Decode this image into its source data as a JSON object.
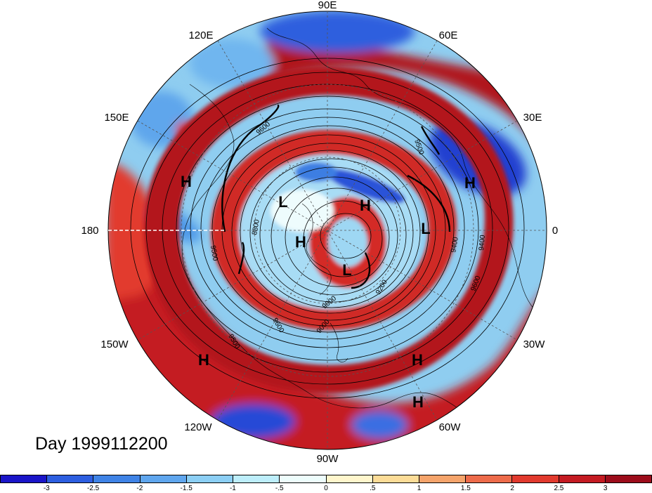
{
  "title": "Day 1999112200",
  "map": {
    "projection": "polar stereographic, north pole",
    "longitude_labels": [
      "90E",
      "60E",
      "30E",
      "0",
      "30W",
      "60W",
      "90W",
      "120W",
      "150W",
      "180",
      "150E",
      "120E"
    ],
    "pressure_systems": [
      {
        "label": "H"
      },
      {
        "label": "H"
      },
      {
        "label": "H"
      },
      {
        "label": "H"
      },
      {
        "label": "H"
      },
      {
        "label": "H"
      },
      {
        "label": "H"
      },
      {
        "label": "L"
      },
      {
        "label": "L"
      },
      {
        "label": "L"
      }
    ],
    "contour_labels": [
      "9600",
      "9500",
      "9000",
      "8800",
      "9200",
      "9400",
      "9600",
      "9500",
      "9400",
      "9000",
      "9500",
      "9600"
    ],
    "colors": {
      "strong_positive": "#a50f15",
      "positive": "#de3a2c",
      "weak_positive": "#f4a582",
      "neutral": "#fff7d6",
      "weak_negative": "#9fd6f0",
      "negative": "#3d8ede",
      "strong_negative": "#1f3fcf"
    }
  },
  "colorbar": {
    "ticks": [
      "-3",
      "-2.5",
      "-2",
      "-1.5",
      "-1",
      "-.5",
      "0",
      ".5",
      "1",
      "1.5",
      "2",
      "2.5",
      "3"
    ],
    "colors": [
      "#1a15c8",
      "#2d5ee0",
      "#3f83e6",
      "#5fa6ee",
      "#8ccff5",
      "#bdeefb",
      "#edfdfc",
      "#fff6cc",
      "#fcdc97",
      "#f5a46b",
      "#ed6b4a",
      "#e13a2e",
      "#c41b22",
      "#9c0c1b"
    ]
  }
}
